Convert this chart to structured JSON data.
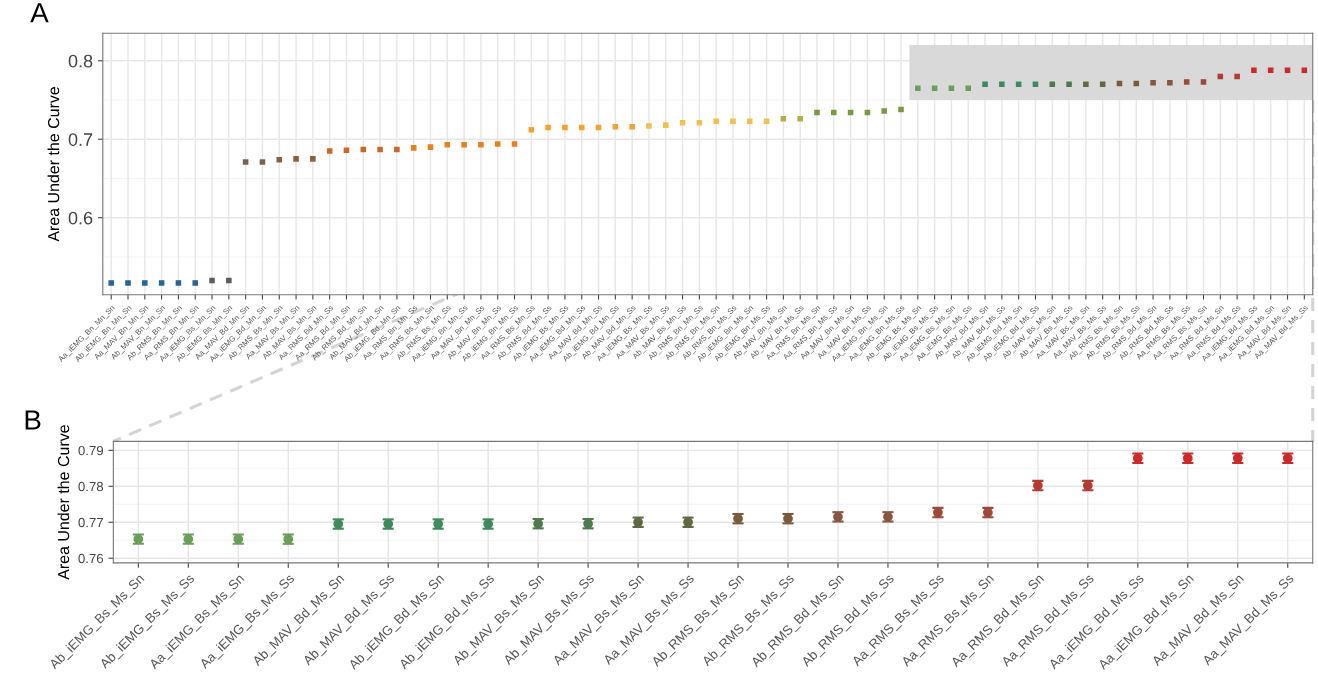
{
  "chart_data": [
    {
      "type": "scatter",
      "title": "A",
      "ylabel": "Area Under the Curve",
      "marker": "square",
      "grid": true,
      "categories": [
        "Aa_iEMG_Bn_Mn_Sn",
        "Ab_iEMG_Bn_Mn_Sn",
        "Aa_MAV_Bn_Mn_Sn",
        "Ab_MAV_Bn_Mn_Sn",
        "Ab_RMS_Bn_Mn_Sn",
        "Aa_RMS_Bn_Mn_Sn",
        "Aa_iEMG_Bs_Mn_Sn",
        "Ab_iEMG_Bs_Mn_Sn",
        "Aa_MAV_Bd_Mn_Sn",
        "Aa_iEMG_Bd_Mn_Sn",
        "Ab_RMS_Bs_Mn_Sn",
        "Aa_MAV_Bs_Mn_Sn",
        "Ab_MAV_Bs_Mn_Sn",
        "Aa_RMS_Bd_Mn_Ss",
        "Aa_RMS_Bd_Mn_Sn",
        "Ab_RMS_Bd_Mn_Sn",
        "Ab_MAV_Bd_Mn_Sn",
        "Ab_iEMG_Bd_Mn_Sn",
        "Aa_RMS_Bn_Mn_Ss",
        "Aa_RMS_Bs_Mn_Sn",
        "Ab_RMS_Bs_Mn_Ss",
        "Aa_iEMG_Bn_Mn_Ss",
        "Aa_MAV_Bn_Mn_Ss",
        "Ab_MAV_Bn_Mn_Ss",
        "Ab_iEMG_Bn_Mn_Ss",
        "Aa_RMS_Bs_Mn_Ss",
        "Ab_RMS_Bd_Mn_Ss",
        "Ab_iEMG_Bs_Mn_Ss",
        "Aa_iEMG_Bd_Mn_Ss",
        "Aa_MAV_Bd_Mn_Ss",
        "Ab_iEMG_Bd_Mn_Ss",
        "Ab_MAV_Bd_Mn_Ss",
        "Aa_iEMG_Bs_Mn_Ss",
        "Aa_MAV_Bs_Mn_Ss",
        "Ab_MAV_Bs_Mn_Ss",
        "Ab_RMS_Bn_Mn_Ss",
        "Ab_RMS_Bn_Ms_Sn",
        "Ab_RMS_Bn_Ms_Ss",
        "Ab_iEMG_Bn_Ms_Sn",
        "Ab_iEMG_Bn_Ms_Ss",
        "Ab_MAV_Bn_Ms_Sn",
        "Ab_MAV_Bn_Ms_Ss",
        "Aa_RMS_Bn_Ms_Sn",
        "Aa_RMS_Bn_Ms_Ss",
        "Aa_MAV_Bn_Ms_Sn",
        "Aa_MAV_Bn_Ms_Ss",
        "Aa_iEMG_Bn_Ms_Sn",
        "Aa_iEMG_Bn_Ms_Ss",
        "Ab_iEMG_Bs_Ms_Sn",
        "Ab_iEMG_Bs_Ms_Ss",
        "Aa_iEMG_Bs_Ms_Sn",
        "Aa_iEMG_Bs_Ms_Ss",
        "Ab_MAV_Bd_Ms_Sn",
        "Ab_MAV_Bd_Ms_Ss",
        "Ab_iEMG_Bd_Ms_Sn",
        "Ab_iEMG_Bd_Ms_Ss",
        "Ab_MAV_Bs_Ms_Sn",
        "Ab_MAV_Bs_Ms_Ss",
        "Aa_MAV_Bs_Ms_Sn",
        "Aa_MAV_Bs_Ms_Ss",
        "Ab_RMS_Bs_Ms_Sn",
        "Ab_RMS_Bs_Ms_Ss",
        "Ab_RMS_Bd_Ms_Sn",
        "Ab_RMS_Bd_Ms_Ss",
        "Aa_RMS_Bs_Ms_Ss",
        "Aa_RMS_Bs_Ms_Sn",
        "Aa_RMS_Bd_Ms_Sn",
        "Aa_RMS_Bd_Ms_Ss",
        "Aa_iEMG_Bd_Ms_Ss",
        "Aa_iEMG_Bd_Ms_Sn",
        "Aa_MAV_Bd_Ms_Sn",
        "Aa_MAV_Bd_Ms_Ss"
      ],
      "values": [
        0.517,
        0.517,
        0.517,
        0.517,
        0.517,
        0.517,
        0.52,
        0.52,
        0.671,
        0.671,
        0.674,
        0.675,
        0.675,
        0.685,
        0.686,
        0.687,
        0.687,
        0.687,
        0.689,
        0.69,
        0.693,
        0.693,
        0.693,
        0.694,
        0.694,
        0.712,
        0.715,
        0.715,
        0.715,
        0.715,
        0.716,
        0.716,
        0.717,
        0.718,
        0.721,
        0.721,
        0.723,
        0.723,
        0.723,
        0.723,
        0.726,
        0.726,
        0.734,
        0.734,
        0.734,
        0.734,
        0.736,
        0.738,
        0.765,
        0.765,
        0.765,
        0.765,
        0.77,
        0.77,
        0.77,
        0.77,
        0.77,
        0.77,
        0.77,
        0.77,
        0.771,
        0.771,
        0.772,
        0.772,
        0.773,
        0.773,
        0.78,
        0.78,
        0.788,
        0.788,
        0.788,
        0.788
      ],
      "colors": [
        "#2a6496",
        "#2a6496",
        "#2a6496",
        "#2a6496",
        "#2a6496",
        "#2a6496",
        "#5e5e5e",
        "#5e5e5e",
        "#7a6050",
        "#7a6050",
        "#8a6040",
        "#8a6040",
        "#8a6040",
        "#c8682a",
        "#c8682a",
        "#c8682a",
        "#c8682a",
        "#c8682a",
        "#e8801e",
        "#e8801e",
        "#e8801e",
        "#e8801e",
        "#e8801e",
        "#e8801e",
        "#e8801e",
        "#f5a030",
        "#f5a030",
        "#f5a030",
        "#f5a030",
        "#f5a030",
        "#f5a030",
        "#f5a030",
        "#f0c050",
        "#f0c050",
        "#f0c050",
        "#f0c050",
        "#f0c050",
        "#f0c050",
        "#f0c050",
        "#f0c050",
        "#b0b048",
        "#b0b048",
        "#7a9a40",
        "#7a9a40",
        "#7a9a40",
        "#7a9a40",
        "#7a9a40",
        "#7a9a40",
        "#6a9e5a",
        "#6a9e5a",
        "#6a9e5a",
        "#6a9e5a",
        "#3e8a5a",
        "#3e8a5a",
        "#3e8a5a",
        "#3e8a5a",
        "#4f7a4e",
        "#4f7a4e",
        "#5f6a45",
        "#5f6a45",
        "#7a5a3e",
        "#7a5a3e",
        "#8a5540",
        "#8a5540",
        "#9e4a38",
        "#9e4a38",
        "#b33b33",
        "#b33b33",
        "#cc2a2a",
        "#cc2a2a",
        "#cc2a2a",
        "#cc2a2a"
      ],
      "ylim": [
        0.502,
        0.835
      ],
      "yticks": [
        0.6,
        0.7,
        0.8
      ],
      "bands": [
        {
          "axis": "y",
          "from": 0.75,
          "to": 0.82,
          "color": "#d9d9d9"
        }
      ]
    },
    {
      "type": "scatter",
      "title": "B",
      "ylabel": "Area Under the Curve",
      "marker": "circle",
      "grid": true,
      "categories": [
        "Ab_iEMG_Bs_Ms_Sn",
        "Ab_iEMG_Bs_Ms_Ss",
        "Aa_iEMG_Bs_Ms_Sn",
        "Aa_iEMG_Bs_Ms_Ss",
        "Ab_MAV_Bd_Ms_Sn",
        "Ab_MAV_Bd_Ms_Ss",
        "Ab_iEMG_Bd_Ms_Sn",
        "Ab_iEMG_Bd_Ms_Ss",
        "Ab_MAV_Bs_Ms_Sn",
        "Ab_MAV_Bs_Ms_Ss",
        "Aa_MAV_Bs_Ms_Sn",
        "Aa_MAV_Bs_Ms_Ss",
        "Ab_RMS_Bs_Ms_Sn",
        "Ab_RMS_Bs_Ms_Ss",
        "Ab_RMS_Bd_Ms_Sn",
        "Ab_RMS_Bd_Ms_Ss",
        "Aa_RMS_Bs_Ms_Ss",
        "Aa_RMS_Bs_Ms_Sn",
        "Aa_RMS_Bd_Ms_Sn",
        "Aa_RMS_Bd_Ms_Ss",
        "Aa_iEMG_Bd_Ms_Ss",
        "Aa_iEMG_Bd_Ms_Sn",
        "Aa_MAV_Bd_Ms_Sn",
        "Aa_MAV_Bd_Ms_Ss"
      ],
      "values": [
        0.7653,
        0.7653,
        0.7653,
        0.7653,
        0.7695,
        0.7695,
        0.7695,
        0.7695,
        0.7696,
        0.7696,
        0.77,
        0.77,
        0.771,
        0.771,
        0.7715,
        0.7715,
        0.7727,
        0.7727,
        0.7802,
        0.7802,
        0.7878,
        0.7878,
        0.7878,
        0.7878
      ],
      "errors": [
        0.0013,
        0.0013,
        0.0013,
        0.0013,
        0.0013,
        0.0013,
        0.0013,
        0.0013,
        0.0013,
        0.0013,
        0.0013,
        0.0013,
        0.0013,
        0.0013,
        0.0013,
        0.0013,
        0.0013,
        0.0013,
        0.0013,
        0.0013,
        0.0013,
        0.0013,
        0.0013,
        0.0013
      ],
      "colors": [
        "#6a9e5a",
        "#6a9e5a",
        "#6a9e5a",
        "#6a9e5a",
        "#3e8a5a",
        "#3e8a5a",
        "#3e8a5a",
        "#3e8a5a",
        "#4f7a4e",
        "#4f7a4e",
        "#5f6a45",
        "#5f6a45",
        "#7a5a3e",
        "#7a5a3e",
        "#8a5540",
        "#8a5540",
        "#9e4a38",
        "#9e4a38",
        "#b33b33",
        "#b33b33",
        "#cc2a2a",
        "#cc2a2a",
        "#cc2a2a",
        "#cc2a2a"
      ],
      "ylim": [
        0.7587,
        0.7925
      ],
      "yticks": [
        0.76,
        0.77,
        0.78,
        0.79
      ]
    }
  ]
}
